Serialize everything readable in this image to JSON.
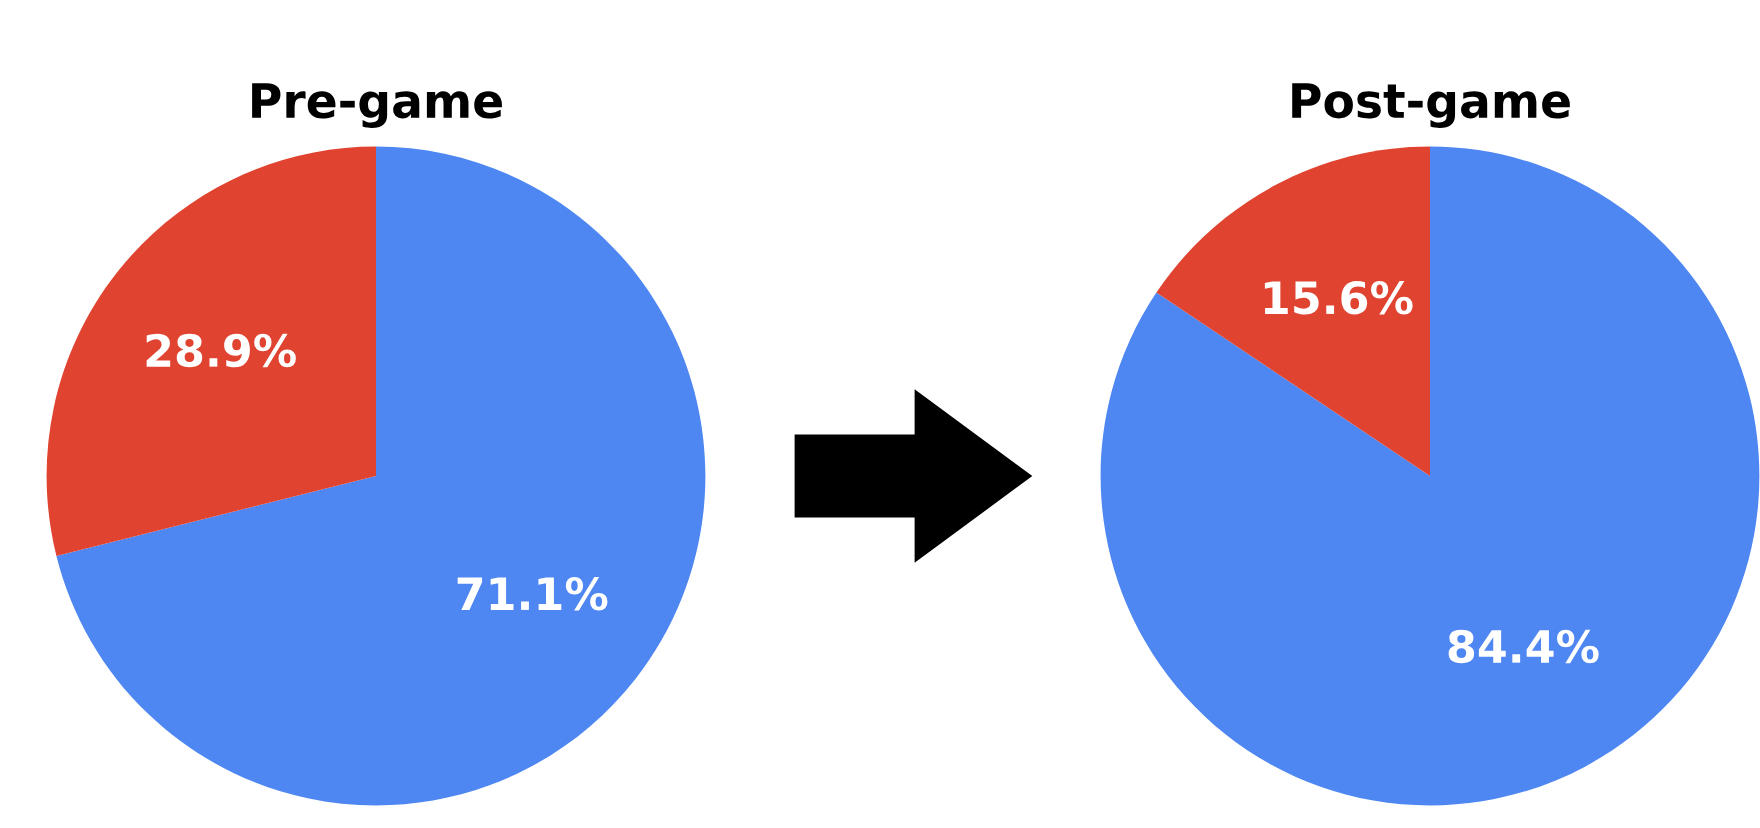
{
  "chart_data": [
    {
      "type": "pie",
      "title": "Pre-game",
      "categories": [
        null,
        null
      ],
      "values": [
        71.1,
        28.9
      ],
      "colors": [
        "#4e86f2",
        "#e04431"
      ],
      "value_labels": [
        "71.1%",
        "28.9%"
      ]
    },
    {
      "type": "pie",
      "title": "Post-game",
      "categories": [
        null,
        null
      ],
      "values": [
        84.4,
        15.6
      ],
      "colors": [
        "#4e86f2",
        "#e04431"
      ],
      "value_labels": [
        "84.4%",
        "15.6%"
      ]
    }
  ]
}
